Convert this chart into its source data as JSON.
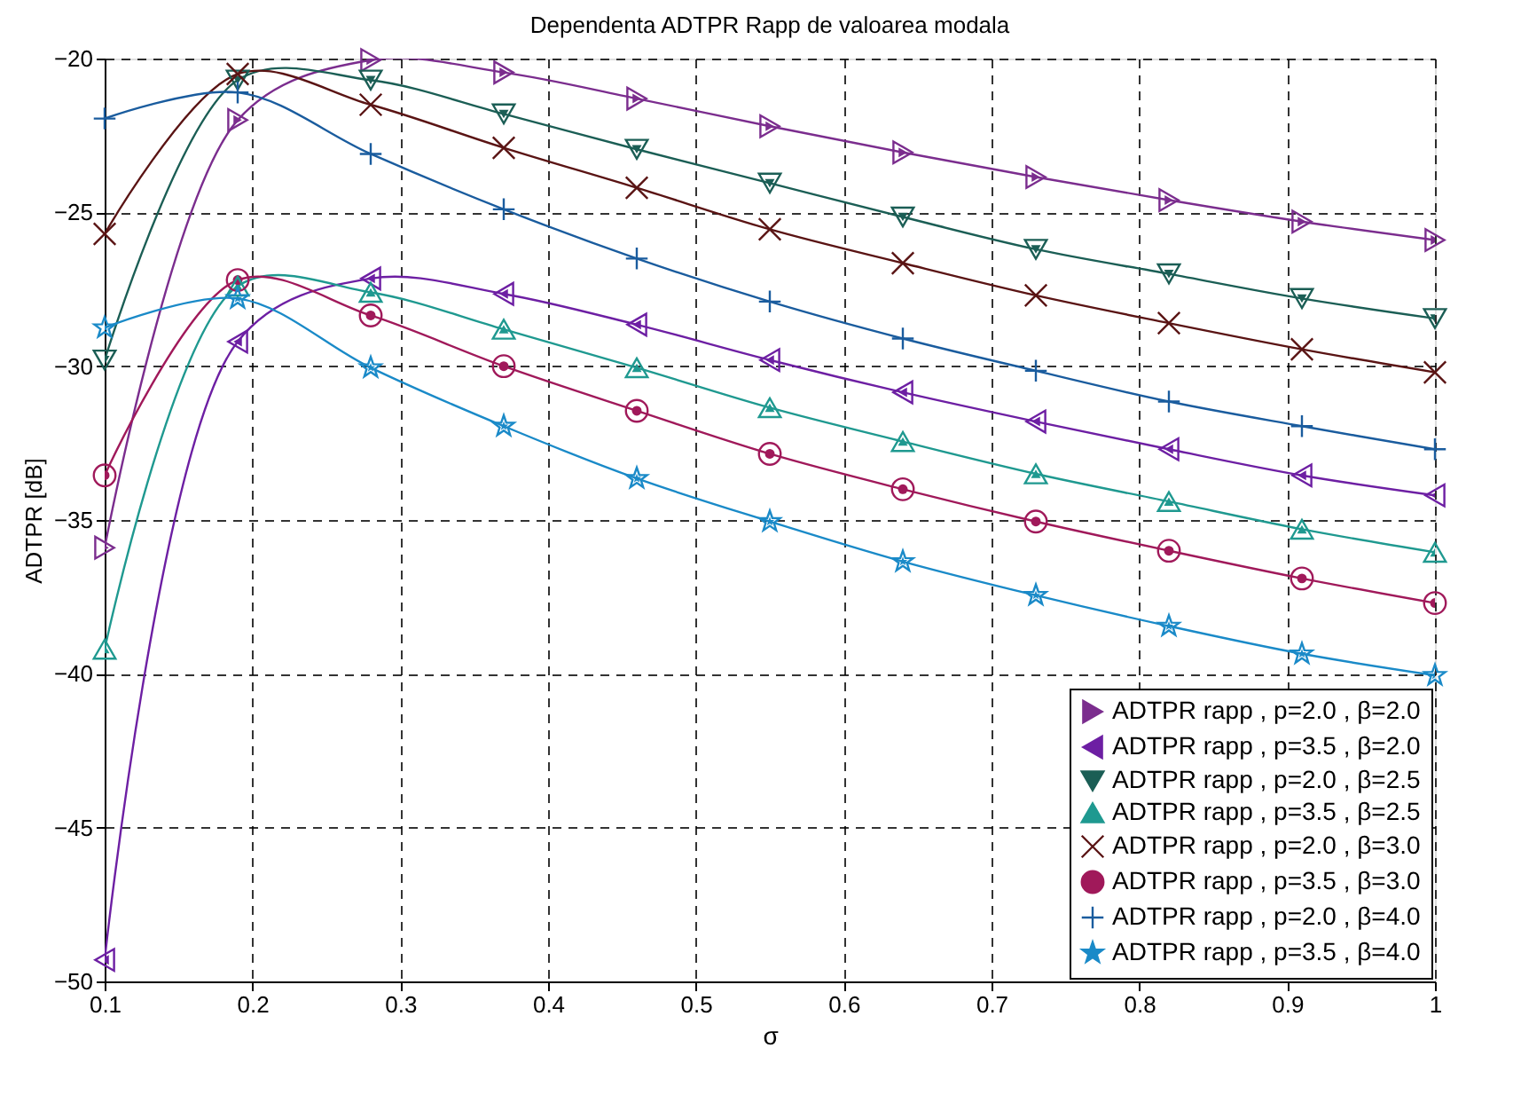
{
  "chart_data": {
    "type": "line",
    "title": "Dependenta ADTPR Rapp de valoarea modala",
    "xlabel": "σ",
    "ylabel": "ADTPR [dB]",
    "x": [
      0.1,
      0.19,
      0.28,
      0.37,
      0.46,
      0.55,
      0.64,
      0.73,
      0.82,
      0.91,
      1.0
    ],
    "series": [
      {
        "name": "ADTPR rapp , p=2.0 , β=2.0",
        "color": "#7b2d8e",
        "marker": "triangle-right",
        "values": [
          -35.9,
          -22.0,
          -20.05,
          -20.45,
          -21.3,
          -22.2,
          -23.05,
          -23.85,
          -24.6,
          -25.3,
          -25.9
        ]
      },
      {
        "name": "ADTPR rapp , p=3.5 , β=2.0",
        "color": "#6d1fa3",
        "marker": "triangle-left",
        "values": [
          -49.3,
          -29.2,
          -27.15,
          -27.65,
          -28.65,
          -29.8,
          -30.85,
          -31.8,
          -32.7,
          -33.55,
          -34.2
        ]
      },
      {
        "name": "ADTPR rapp , p=2.0 , β=2.5",
        "color": "#1b5e55",
        "marker": "triangle-down",
        "values": [
          -29.8,
          -20.7,
          -20.7,
          -21.8,
          -22.95,
          -24.05,
          -25.15,
          -26.2,
          -27.0,
          -27.8,
          -28.45
        ]
      },
      {
        "name": "ADTPR rapp , p=3.5 , β=2.5",
        "color": "#1f9990",
        "marker": "triangle-up",
        "values": [
          -39.2,
          -27.4,
          -27.6,
          -28.8,
          -30.05,
          -31.35,
          -32.45,
          -33.5,
          -34.4,
          -35.3,
          -36.05
        ]
      },
      {
        "name": "ADTPR rapp , p=2.0 , β=3.0",
        "color": "#5a1414",
        "marker": "x",
        "values": [
          -25.7,
          -20.5,
          -21.5,
          -22.9,
          -24.2,
          -25.55,
          -26.65,
          -27.7,
          -28.6,
          -29.45,
          -30.2
        ]
      },
      {
        "name": "ADTPR rapp , p=3.5 , β=3.0",
        "color": "#a0195a",
        "marker": "circle",
        "values": [
          -33.55,
          -27.2,
          -28.35,
          -30.0,
          -31.45,
          -32.85,
          -34.0,
          -35.05,
          -36.0,
          -36.9,
          -37.7
        ]
      },
      {
        "name": "ADTPR rapp , p=2.0 , β=4.0",
        "color": "#1a5c9e",
        "marker": "cross",
        "values": [
          -21.95,
          -21.1,
          -23.1,
          -24.9,
          -26.5,
          -27.9,
          -29.1,
          -30.15,
          -31.15,
          -31.95,
          -32.7
        ]
      },
      {
        "name": "ADTPR rapp , p=3.5 , β=4.0",
        "color": "#1a8ac8",
        "marker": "star",
        "values": [
          -28.75,
          -27.8,
          -30.05,
          -31.95,
          -33.65,
          -35.05,
          -36.35,
          -37.45,
          -38.45,
          -39.35,
          -40.05
        ]
      }
    ],
    "xlim": [
      0.1,
      1.0
    ],
    "xticks": [
      0.1,
      0.2,
      0.3,
      0.4,
      0.5,
      0.6,
      0.7,
      0.8,
      0.9,
      1
    ],
    "ylim": [
      -50,
      -20
    ],
    "yticks": [
      -50,
      -45,
      -40,
      -35,
      -30,
      -25,
      -20
    ],
    "grid": true,
    "legend": "bottom right",
    "line_style": "solid"
  }
}
